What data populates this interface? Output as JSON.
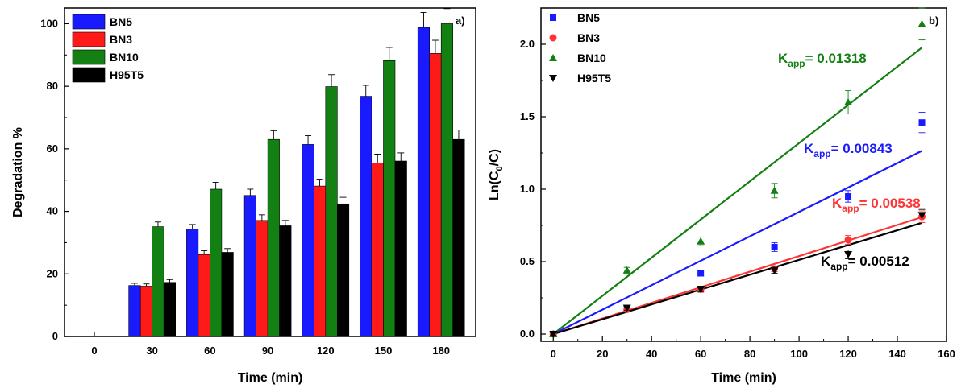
{
  "chart_data": [
    {
      "type": "bar",
      "panel_label": "a)",
      "xlabel": "Time (min)",
      "ylabel": "Degradation %",
      "categories": [
        "0",
        "30",
        "60",
        "90",
        "120",
        "150",
        "180"
      ],
      "ylim": [
        0,
        105
      ],
      "yticks": [
        0,
        20,
        40,
        60,
        80,
        100
      ],
      "legend_position": "top-left",
      "series": [
        {
          "name": "BN5",
          "color": "#1a1aff",
          "values": [
            0,
            16.3,
            34.3,
            45.1,
            61.4,
            76.8,
            98.8
          ],
          "errors": [
            0,
            0.7,
            1.5,
            2.0,
            2.8,
            3.5,
            4.8
          ]
        },
        {
          "name": "BN3",
          "color": "#ff1a1a",
          "values": [
            0,
            16.1,
            26.2,
            37.1,
            48.1,
            55.5,
            90.5
          ],
          "errors": [
            0,
            0.7,
            1.2,
            1.8,
            2.2,
            2.8,
            4.2
          ]
        },
        {
          "name": "BN10",
          "color": "#138013",
          "values": [
            0,
            35.1,
            47.1,
            63.0,
            79.9,
            88.2,
            100.0
          ],
          "errors": [
            0,
            1.5,
            2.2,
            2.8,
            3.8,
            4.2,
            4.8
          ]
        },
        {
          "name": "H95T5",
          "color": "#000000",
          "values": [
            0,
            17.3,
            26.9,
            35.4,
            42.4,
            56.1,
            63.0
          ],
          "errors": [
            0,
            0.9,
            1.2,
            1.7,
            2.1,
            2.6,
            3.0
          ]
        }
      ]
    },
    {
      "type": "scatter",
      "panel_label": "b)",
      "xlabel": "Time (min)",
      "ylabel_main": "Ln(C",
      "ylabel_sub": "0",
      "ylabel_tail": "/C)",
      "xlim": [
        -5,
        160
      ],
      "ylim": [
        -0.05,
        2.25
      ],
      "xticks": [
        0,
        20,
        40,
        60,
        80,
        100,
        120,
        140,
        160
      ],
      "yticks": [
        "0.0",
        "0.5",
        "1.0",
        "1.5",
        "2.0"
      ],
      "legend_position": "top-left",
      "series": [
        {
          "name": "BN5",
          "color": "#1a1aff",
          "marker": "square",
          "x": [
            0,
            30,
            60,
            90,
            120,
            150
          ],
          "y": [
            0.0,
            0.18,
            0.42,
            0.6,
            0.95,
            1.46
          ],
          "errors": [
            0.01,
            0.015,
            0.02,
            0.03,
            0.04,
            0.07
          ],
          "fit_slope": 0.00843,
          "kapp_label": "K",
          "kapp_sub": "app",
          "kapp_value": "= 0.00843"
        },
        {
          "name": "BN3",
          "color": "#ff3333",
          "marker": "circle",
          "x": [
            0,
            30,
            60,
            90,
            120,
            150
          ],
          "y": [
            0.0,
            0.17,
            0.31,
            0.45,
            0.65,
            0.81
          ],
          "errors": [
            0.01,
            0.015,
            0.02,
            0.02,
            0.03,
            0.04
          ],
          "fit_slope": 0.00538,
          "kapp_label": "K",
          "kapp_sub": "app",
          "kapp_value": "= 0.00538"
        },
        {
          "name": "BN10",
          "color": "#138013",
          "marker": "triangle-up",
          "x": [
            0,
            30,
            60,
            90,
            120,
            150
          ],
          "y": [
            0.0,
            0.44,
            0.64,
            0.99,
            1.6,
            2.14
          ],
          "errors": [
            0.01,
            0.02,
            0.03,
            0.05,
            0.08,
            0.11
          ],
          "fit_slope": 0.01318,
          "kapp_label": "K",
          "kapp_sub": "app",
          "kapp_value": "= 0.01318"
        },
        {
          "name": "H95T5",
          "color": "#000000",
          "marker": "triangle-down",
          "x": [
            0,
            30,
            60,
            90,
            120,
            150
          ],
          "y": [
            0.0,
            0.18,
            0.31,
            0.44,
            0.55,
            0.82
          ],
          "errors": [
            0.01,
            0.015,
            0.02,
            0.02,
            0.03,
            0.04
          ],
          "fit_slope": 0.00512,
          "kapp_label": "K",
          "kapp_sub": "app",
          "kapp_value": "= 0.00512"
        }
      ]
    }
  ]
}
